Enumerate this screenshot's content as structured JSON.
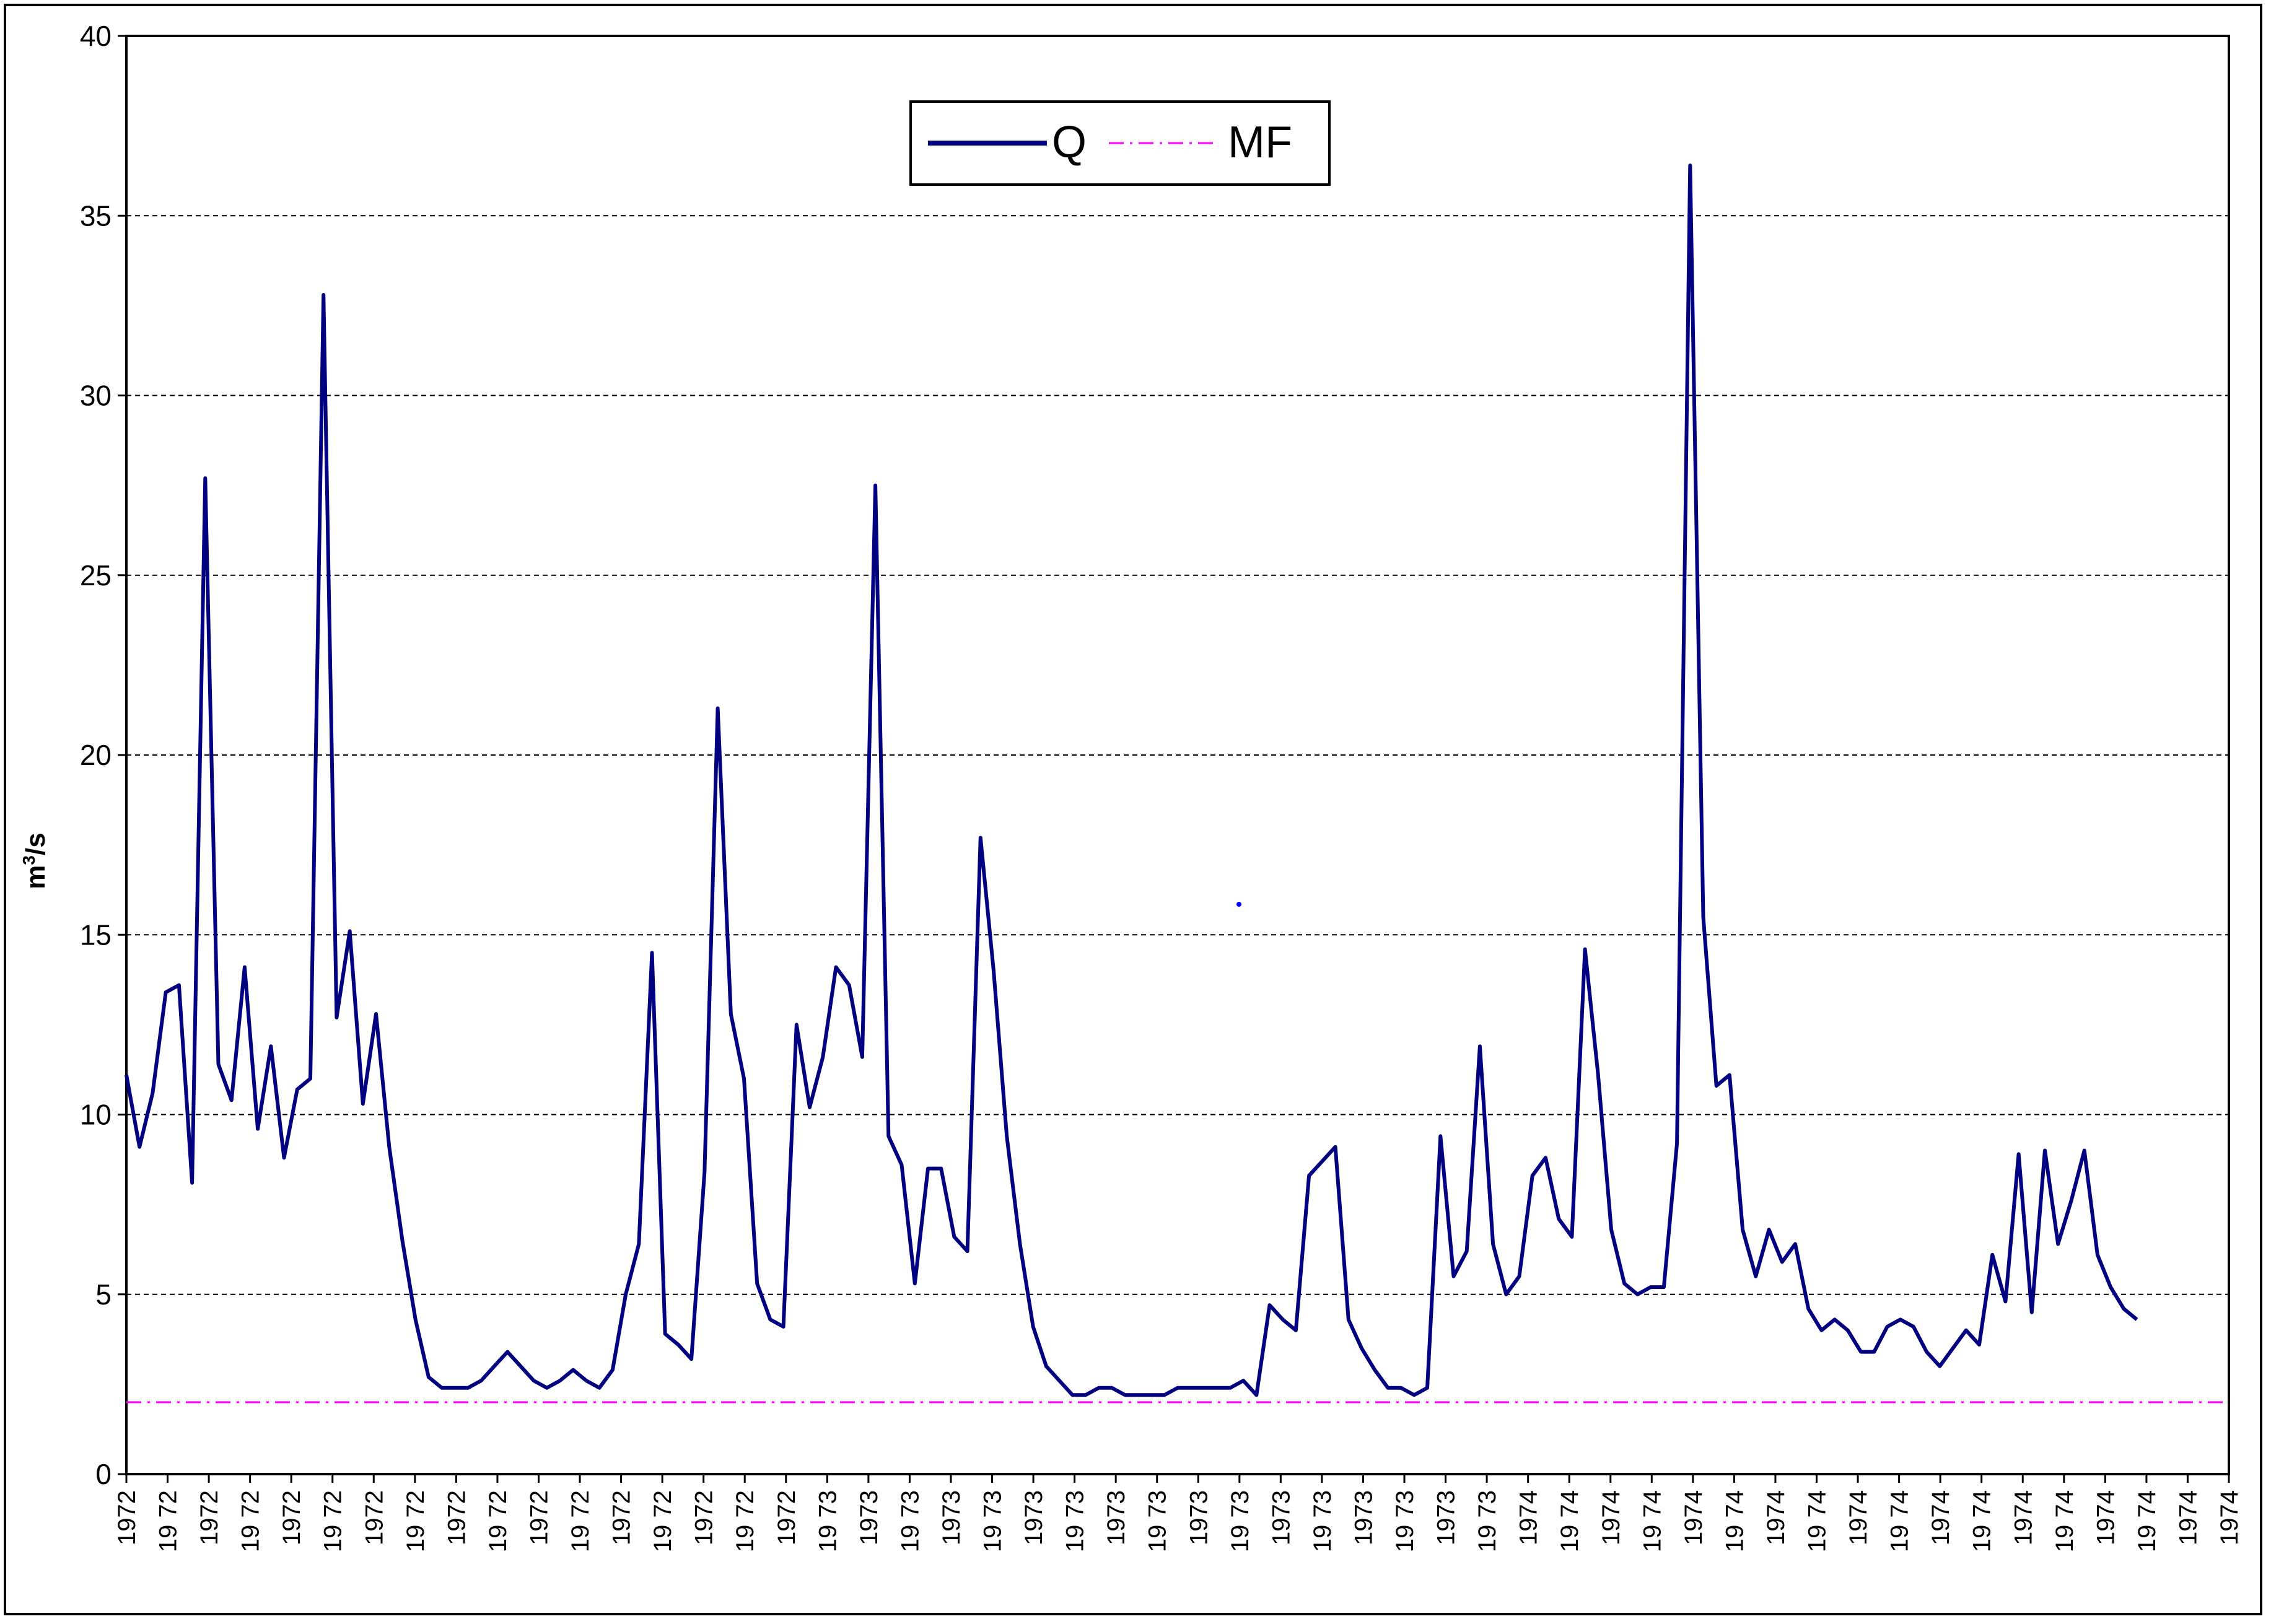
{
  "chart_data": {
    "type": "line",
    "title": "",
    "xlabel": "",
    "ylabel": "m³/s",
    "ylabel_base": "m",
    "ylabel_sup": "3",
    "ylabel_tail": "/s",
    "ylim": [
      0,
      40
    ],
    "yticks": [
      0,
      5,
      10,
      15,
      20,
      25,
      30,
      35,
      40
    ],
    "grid": "horizontal dashed",
    "legend_position": "top-center",
    "x_tick_labels": [
      "1972",
      "19 72",
      "1972",
      "19 72",
      "1972",
      "19 72",
      "1972",
      "19 72",
      "1972",
      "19 72",
      "1972",
      "19 72",
      "1972",
      "19 72",
      "1972",
      "19 72",
      "1972",
      "19 73",
      "1973",
      "19 73",
      "1973",
      "19 73",
      "1973",
      "19 73",
      "1973",
      "19 73",
      "1973",
      "19 73",
      "1973",
      "19 73",
      "1973",
      "19 73",
      "1973",
      "19 73",
      "1974",
      "19 74",
      "1974",
      "19 74",
      "1974",
      "19 74",
      "1974",
      "19 74",
      "1974",
      "19 74",
      "1974",
      "19 74",
      "1974",
      "19 74",
      "1974",
      "19 74",
      "1974",
      "1974"
    ],
    "series": [
      {
        "name": "Q",
        "color": "#000080",
        "style": "solid",
        "values": [
          11.1,
          9.1,
          10.6,
          13.4,
          13.6,
          8.1,
          27.7,
          11.4,
          10.4,
          14.1,
          9.6,
          11.9,
          8.8,
          10.7,
          11.0,
          32.8,
          12.7,
          15.1,
          10.3,
          12.8,
          9.1,
          6.5,
          4.3,
          2.7,
          2.4,
          2.4,
          2.4,
          2.6,
          3.0,
          3.4,
          3.0,
          2.6,
          2.4,
          2.6,
          2.9,
          2.6,
          2.4,
          2.9,
          5.0,
          6.4,
          14.5,
          3.9,
          3.6,
          3.2,
          8.4,
          21.3,
          12.8,
          11.0,
          5.3,
          4.3,
          4.1,
          12.5,
          10.2,
          11.6,
          14.1,
          13.6,
          11.6,
          27.5,
          9.4,
          8.6,
          5.3,
          8.5,
          8.5,
          6.6,
          6.2,
          17.7,
          14.0,
          9.4,
          6.4,
          4.1,
          3.0,
          2.6,
          2.2,
          2.2,
          2.4,
          2.4,
          2.2,
          2.2,
          2.2,
          2.2,
          2.4,
          2.4,
          2.4,
          2.4,
          2.4,
          2.6,
          2.2,
          4.7,
          4.3,
          4.0,
          8.3,
          8.7,
          9.1,
          4.3,
          3.5,
          2.9,
          2.4,
          2.4,
          2.2,
          2.4,
          9.4,
          5.5,
          6.2,
          11.9,
          6.4,
          5.0,
          5.5,
          8.3,
          8.8,
          7.1,
          6.6,
          14.6,
          11.1,
          6.8,
          5.3,
          5.0,
          5.2,
          5.2,
          9.2,
          36.4,
          15.5,
          10.8,
          11.1,
          6.8,
          5.5,
          6.8,
          5.9,
          6.4,
          4.6,
          4.0,
          4.3,
          4.0,
          3.4,
          3.4,
          4.1,
          4.3,
          4.1,
          3.4,
          3.0,
          3.5,
          4.0,
          3.6,
          6.1,
          4.8,
          8.9,
          4.5,
          9.0,
          6.4,
          7.6,
          9.0,
          6.1,
          5.2,
          4.6,
          4.3
        ],
        "visible_x_range": [
          0,
          160
        ]
      },
      {
        "name": "MF",
        "color": "#ff00ff",
        "style": "dash-dot",
        "values": [
          2.0,
          2.0
        ]
      }
    ]
  }
}
